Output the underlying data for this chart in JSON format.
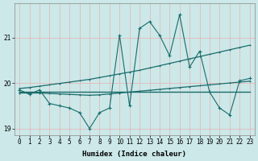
{
  "xlabel": "Humidex (Indice chaleur)",
  "bg_color": "#cce8e8",
  "grid_color": "#e8b0b0",
  "line_color": "#1a6b6b",
  "x": [
    0,
    1,
    2,
    3,
    4,
    5,
    6,
    7,
    8,
    9,
    10,
    11,
    12,
    13,
    14,
    15,
    16,
    17,
    18,
    19,
    20,
    21,
    22,
    23
  ],
  "y_main": [
    19.85,
    19.75,
    19.85,
    19.55,
    19.5,
    19.45,
    19.35,
    19.0,
    19.35,
    19.45,
    21.05,
    19.5,
    21.2,
    21.35,
    21.05,
    20.6,
    21.5,
    20.35,
    20.7,
    19.8,
    19.45,
    19.3,
    20.05,
    20.1
  ],
  "y_upper": [
    19.88,
    19.9,
    19.93,
    19.96,
    19.99,
    20.02,
    20.05,
    20.08,
    20.12,
    20.16,
    20.2,
    20.24,
    20.28,
    20.33,
    20.38,
    20.43,
    20.48,
    20.53,
    20.58,
    20.63,
    20.68,
    20.73,
    20.78,
    20.83
  ],
  "y_lower": [
    19.78,
    19.78,
    19.78,
    19.77,
    19.76,
    19.75,
    19.74,
    19.73,
    19.74,
    19.76,
    19.78,
    19.8,
    19.82,
    19.84,
    19.86,
    19.88,
    19.9,
    19.92,
    19.94,
    19.96,
    19.98,
    20.0,
    20.02,
    20.04
  ],
  "y_flat": [
    19.8,
    19.8,
    19.8,
    19.8,
    19.8,
    19.8,
    19.8,
    19.8,
    19.8,
    19.8,
    19.8,
    19.8,
    19.8,
    19.8,
    19.8,
    19.8,
    19.8,
    19.8,
    19.8,
    19.8,
    19.8,
    19.8,
    19.8,
    19.8
  ],
  "ylim": [
    18.85,
    21.75
  ],
  "yticks": [
    19,
    20,
    21
  ],
  "label_fontsize": 6.5,
  "tick_fontsize": 5.5
}
